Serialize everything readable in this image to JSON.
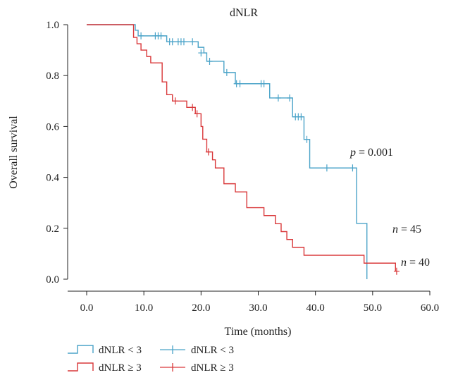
{
  "chart_data": {
    "type": "line",
    "title": "dNLR",
    "xlabel": "Time (months)",
    "ylabel": "Overall survival",
    "xlim": [
      0,
      60
    ],
    "ylim": [
      0,
      1.0
    ],
    "x_ticks": [
      "0.0",
      "10.0",
      "20.0",
      "30.0",
      "40.0",
      "50.0",
      "60.0"
    ],
    "y_ticks": [
      "0.0",
      "0.2",
      "0.4",
      "0.6",
      "0.8",
      "1.0"
    ],
    "grid": false,
    "legend_position": "bottom-left",
    "annotations": {
      "p_letter": "p",
      "p_value": " = 0.001",
      "n_low_letter": "n",
      "n_low_value": " = 45",
      "n_high_letter": "n",
      "n_high_value": " = 40"
    },
    "series": [
      {
        "name": "dNLR < 3",
        "color": "#4aa3c8",
        "steps": [
          [
            0,
            1.0
          ],
          [
            8,
            1.0
          ],
          [
            8.5,
            0.978
          ],
          [
            9,
            0.956
          ],
          [
            14,
            0.933
          ],
          [
            19.5,
            0.911
          ],
          [
            20.5,
            0.889
          ],
          [
            21,
            0.856
          ],
          [
            24,
            0.812
          ],
          [
            26,
            0.768
          ],
          [
            31.5,
            0.768
          ],
          [
            32,
            0.712
          ],
          [
            35,
            0.712
          ],
          [
            36,
            0.638
          ],
          [
            38,
            0.549
          ],
          [
            39,
            0.437
          ],
          [
            47,
            0.437
          ],
          [
            47.2,
            0.219
          ],
          [
            49,
            0.219
          ],
          [
            49,
            0.0
          ]
        ],
        "censor": [
          [
            9.5,
            0.956
          ],
          [
            12,
            0.956
          ],
          [
            12.5,
            0.956
          ],
          [
            13,
            0.956
          ],
          [
            14.5,
            0.933
          ],
          [
            15,
            0.933
          ],
          [
            16,
            0.933
          ],
          [
            16.5,
            0.933
          ],
          [
            17,
            0.933
          ],
          [
            18.5,
            0.933
          ],
          [
            20,
            0.889
          ],
          [
            21.5,
            0.856
          ],
          [
            24.5,
            0.812
          ],
          [
            26.2,
            0.768
          ],
          [
            26.8,
            0.768
          ],
          [
            30.5,
            0.768
          ],
          [
            31,
            0.768
          ],
          [
            33.5,
            0.712
          ],
          [
            35.5,
            0.712
          ],
          [
            36.5,
            0.638
          ],
          [
            37,
            0.638
          ],
          [
            37.5,
            0.638
          ],
          [
            38.5,
            0.549
          ],
          [
            42,
            0.437
          ],
          [
            46.5,
            0.437
          ]
        ]
      },
      {
        "name": "dNLR ≥ 3",
        "color": "#d9383a",
        "steps": [
          [
            0,
            1.0
          ],
          [
            8,
            1.0
          ],
          [
            8.2,
            0.95
          ],
          [
            8.8,
            0.925
          ],
          [
            9.5,
            0.9
          ],
          [
            10.5,
            0.875
          ],
          [
            11.2,
            0.85
          ],
          [
            13,
            0.85
          ],
          [
            13.2,
            0.775
          ],
          [
            14,
            0.725
          ],
          [
            15,
            0.7
          ],
          [
            17.5,
            0.675
          ],
          [
            19,
            0.65
          ],
          [
            20,
            0.6
          ],
          [
            20.3,
            0.55
          ],
          [
            21,
            0.5
          ],
          [
            22,
            0.469
          ],
          [
            22.5,
            0.437
          ],
          [
            24,
            0.375
          ],
          [
            26,
            0.343
          ],
          [
            28,
            0.281
          ],
          [
            31,
            0.25
          ],
          [
            33,
            0.218
          ],
          [
            34,
            0.187
          ],
          [
            35,
            0.156
          ],
          [
            36,
            0.125
          ],
          [
            38,
            0.094
          ],
          [
            48,
            0.094
          ],
          [
            48.5,
            0.063
          ],
          [
            54,
            0.063
          ],
          [
            54,
            0.031
          ]
        ],
        "censor": [
          [
            15.5,
            0.7
          ],
          [
            18.5,
            0.675
          ],
          [
            19.3,
            0.65
          ],
          [
            21.3,
            0.5
          ],
          [
            54.2,
            0.031
          ]
        ]
      }
    ],
    "legend": [
      {
        "kind": "step",
        "series": 0,
        "label": "dNLR < 3"
      },
      {
        "kind": "censor",
        "series": 0,
        "label": "dNLR < 3"
      },
      {
        "kind": "step",
        "series": 1,
        "label": "dNLR ≥ 3"
      },
      {
        "kind": "censor",
        "series": 1,
        "label": "dNLR ≥ 3"
      }
    ]
  }
}
